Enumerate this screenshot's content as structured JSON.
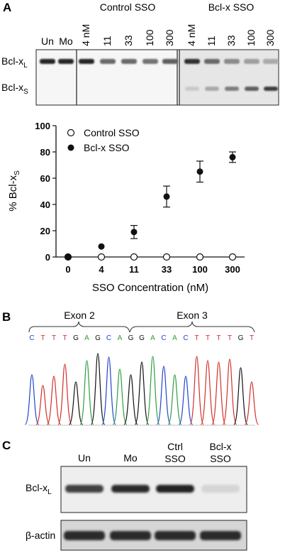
{
  "panel_a": {
    "letter": "A",
    "header_control": "Control SSO",
    "header_bclx": "Bcl-x SSO",
    "lanes": [
      "Un",
      "Mo",
      "4 nM",
      "11",
      "33",
      "100",
      "300",
      "4 nM",
      "11",
      "33",
      "100",
      "300"
    ],
    "row_label_l": {
      "main": "Bcl-x",
      "sub": "L"
    },
    "row_label_s": {
      "main": "Bcl-x",
      "sub": "S"
    }
  },
  "chart_data": {
    "type": "scatter",
    "categories": [
      "0",
      "4",
      "11",
      "33",
      "100",
      "300"
    ],
    "xlabel": "SSO Concentration (nM)",
    "ylabel": {
      "main": "%  Bcl-x",
      "sub": "S"
    },
    "ylim": [
      0,
      100
    ],
    "yticks": [
      0,
      20,
      40,
      60,
      80,
      100
    ],
    "legend_position": "top-left",
    "series": [
      {
        "name": "Control SSO",
        "marker": "open-circle",
        "values": [
          0,
          0,
          0,
          0,
          0,
          0
        ]
      },
      {
        "name": "Bcl-x SSO",
        "marker": "filled-circle",
        "values": [
          0,
          8,
          19,
          46,
          65,
          76
        ],
        "error": [
          0,
          0,
          5,
          8,
          8,
          4
        ]
      }
    ]
  },
  "panel_b": {
    "letter": "B",
    "exon2": "Exon 2",
    "exon3": "Exon 3",
    "sequence": [
      "C",
      "T",
      "T",
      "T",
      "G",
      "A",
      "G",
      "C",
      "A",
      "G",
      "G",
      "A",
      "C",
      "A",
      "C",
      "T",
      "T",
      "T",
      "T",
      "G",
      "T"
    ]
  },
  "panel_c": {
    "letter": "C",
    "lanes": [
      [
        "Un"
      ],
      [
        "Mo"
      ],
      [
        "Ctrl",
        "SSO"
      ],
      [
        "Bcl-x",
        "SSO"
      ]
    ],
    "row_label_l": {
      "main": "Bcl-x",
      "sub": "L"
    },
    "row_label_actin": "β-actin"
  },
  "colors": {
    "A": "#2e9e3e",
    "C": "#2244cc",
    "G": "#111111",
    "T": "#d0302a"
  }
}
